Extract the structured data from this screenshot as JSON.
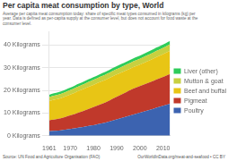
{
  "chart_data": {
    "type": "area",
    "title": "Per capita meat consumption by type, World",
    "subtitle": "Average per capita meat consumption today: share of specific meat types consumed in kilograms (kg) per\nyear. Data is defined as per-capita supply at the consumer level, but does not account for food waste at the\nconsumer level.",
    "annotations": [
      "Source: UN Food and Agriculture Organisation (FAO)",
      "OurWorldInData.org/meat-and-seafood • CC BY"
    ],
    "x": [
      1961,
      1962,
      1963,
      1964,
      1965,
      1966,
      1967,
      1968,
      1969,
      1970,
      1971,
      1972,
      1973,
      1974,
      1975,
      1976,
      1977,
      1978,
      1979,
      1980,
      1981,
      1982,
      1983,
      1984,
      1985,
      1986,
      1987,
      1988,
      1989,
      1990,
      1991,
      1992,
      1993,
      1994,
      1995,
      1996,
      1997,
      1998,
      1999,
      2000,
      2001,
      2002,
      2003,
      2004,
      2005,
      2006,
      2007,
      2008,
      2009,
      2010,
      2011,
      2012,
      2013
    ],
    "series": [
      {
        "name": "Poultry",
        "color": "#3c63b0",
        "values": [
          2.0,
          2.1,
          2.15,
          2.2,
          2.3,
          2.4,
          2.55,
          2.7,
          2.85,
          3.0,
          3.15,
          3.3,
          3.5,
          3.65,
          3.8,
          4.0,
          4.2,
          4.4,
          4.55,
          4.7,
          4.9,
          5.1,
          5.3,
          5.5,
          5.7,
          6.0,
          6.3,
          6.6,
          6.9,
          7.2,
          7.5,
          7.8,
          8.1,
          8.4,
          8.7,
          9.0,
          9.3,
          9.6,
          9.9,
          10.2,
          10.5,
          10.8,
          11.1,
          11.4,
          11.7,
          12.0,
          12.3,
          12.6,
          12.9,
          13.2,
          13.5,
          13.8,
          14.1
        ]
      },
      {
        "name": "Pigmeat",
        "color": "#c0392b",
        "values": [
          4.8,
          4.9,
          5.0,
          5.1,
          5.2,
          5.35,
          5.5,
          5.65,
          5.8,
          5.95,
          6.1,
          6.3,
          6.5,
          6.7,
          6.9,
          7.1,
          7.3,
          7.5,
          7.7,
          7.9,
          8.1,
          8.3,
          8.5,
          8.7,
          8.9,
          9.1,
          9.3,
          9.6,
          9.8,
          10.0,
          10.2,
          10.4,
          10.6,
          10.8,
          11.0,
          11.2,
          11.4,
          11.5,
          11.6,
          11.7,
          11.8,
          11.9,
          12.0,
          12.1,
          12.2,
          12.3,
          12.5,
          12.6,
          12.7,
          12.8,
          12.9,
          13.0,
          13.1
        ]
      },
      {
        "name": "Beef and buffalo",
        "color": "#e8c515",
        "values": [
          8.5,
          8.6,
          8.7,
          8.75,
          8.8,
          8.85,
          8.9,
          9.0,
          9.1,
          9.2,
          9.3,
          9.4,
          9.5,
          9.55,
          9.6,
          9.65,
          9.7,
          9.75,
          9.8,
          9.85,
          9.9,
          9.95,
          10.0,
          10.0,
          10.0,
          10.0,
          9.95,
          9.9,
          9.85,
          9.8,
          9.75,
          9.7,
          9.65,
          9.6,
          9.55,
          9.5,
          9.5,
          9.5,
          9.5,
          9.5,
          9.55,
          9.6,
          9.65,
          9.7,
          9.75,
          9.8,
          9.85,
          9.9,
          9.95,
          10.0,
          10.1,
          10.2,
          10.3
        ]
      },
      {
        "name": "Mutton & goat",
        "color": "#c8d040",
        "values": [
          1.8,
          1.82,
          1.84,
          1.86,
          1.88,
          1.9,
          1.92,
          1.94,
          1.96,
          1.98,
          2.0,
          2.02,
          2.04,
          2.06,
          2.08,
          2.1,
          2.12,
          2.14,
          2.16,
          2.18,
          2.2,
          2.22,
          2.24,
          2.26,
          2.28,
          2.3,
          2.32,
          2.34,
          2.36,
          2.38,
          2.4,
          2.42,
          2.44,
          2.46,
          2.48,
          2.5,
          2.52,
          2.54,
          2.56,
          2.58,
          2.6,
          2.62,
          2.64,
          2.66,
          2.68,
          2.7,
          2.72,
          2.74,
          2.76,
          2.78,
          2.8,
          2.82,
          2.84
        ]
      },
      {
        "name": "Liver (other)",
        "color": "#2ecc5a",
        "values": [
          1.0,
          1.01,
          1.02,
          1.03,
          1.04,
          1.05,
          1.06,
          1.07,
          1.08,
          1.09,
          1.1,
          1.11,
          1.12,
          1.13,
          1.14,
          1.15,
          1.16,
          1.17,
          1.18,
          1.19,
          1.2,
          1.21,
          1.22,
          1.23,
          1.24,
          1.25,
          1.26,
          1.27,
          1.28,
          1.29,
          1.3,
          1.31,
          1.32,
          1.33,
          1.34,
          1.35,
          1.36,
          1.37,
          1.38,
          1.39,
          1.4,
          1.41,
          1.42,
          1.43,
          1.44,
          1.45,
          1.46,
          1.47,
          1.48,
          1.49,
          1.5,
          1.51,
          1.52
        ]
      }
    ],
    "xlim": [
      1961,
      2013
    ],
    "xticks": [
      1961,
      1970,
      1980,
      1990,
      2000,
      2010
    ],
    "ylim": [
      0,
      46
    ],
    "yticks": [
      {
        "value": 0,
        "label": "0 Kilograms"
      },
      {
        "value": 10,
        "label": "10 Kilograms"
      },
      {
        "value": 20,
        "label": "20 Kilograms"
      },
      {
        "value": 30,
        "label": "30 Kilograms"
      },
      {
        "value": 40,
        "label": "40 Kilograms"
      }
    ],
    "stacked": true,
    "grid": true,
    "legend": "right"
  }
}
